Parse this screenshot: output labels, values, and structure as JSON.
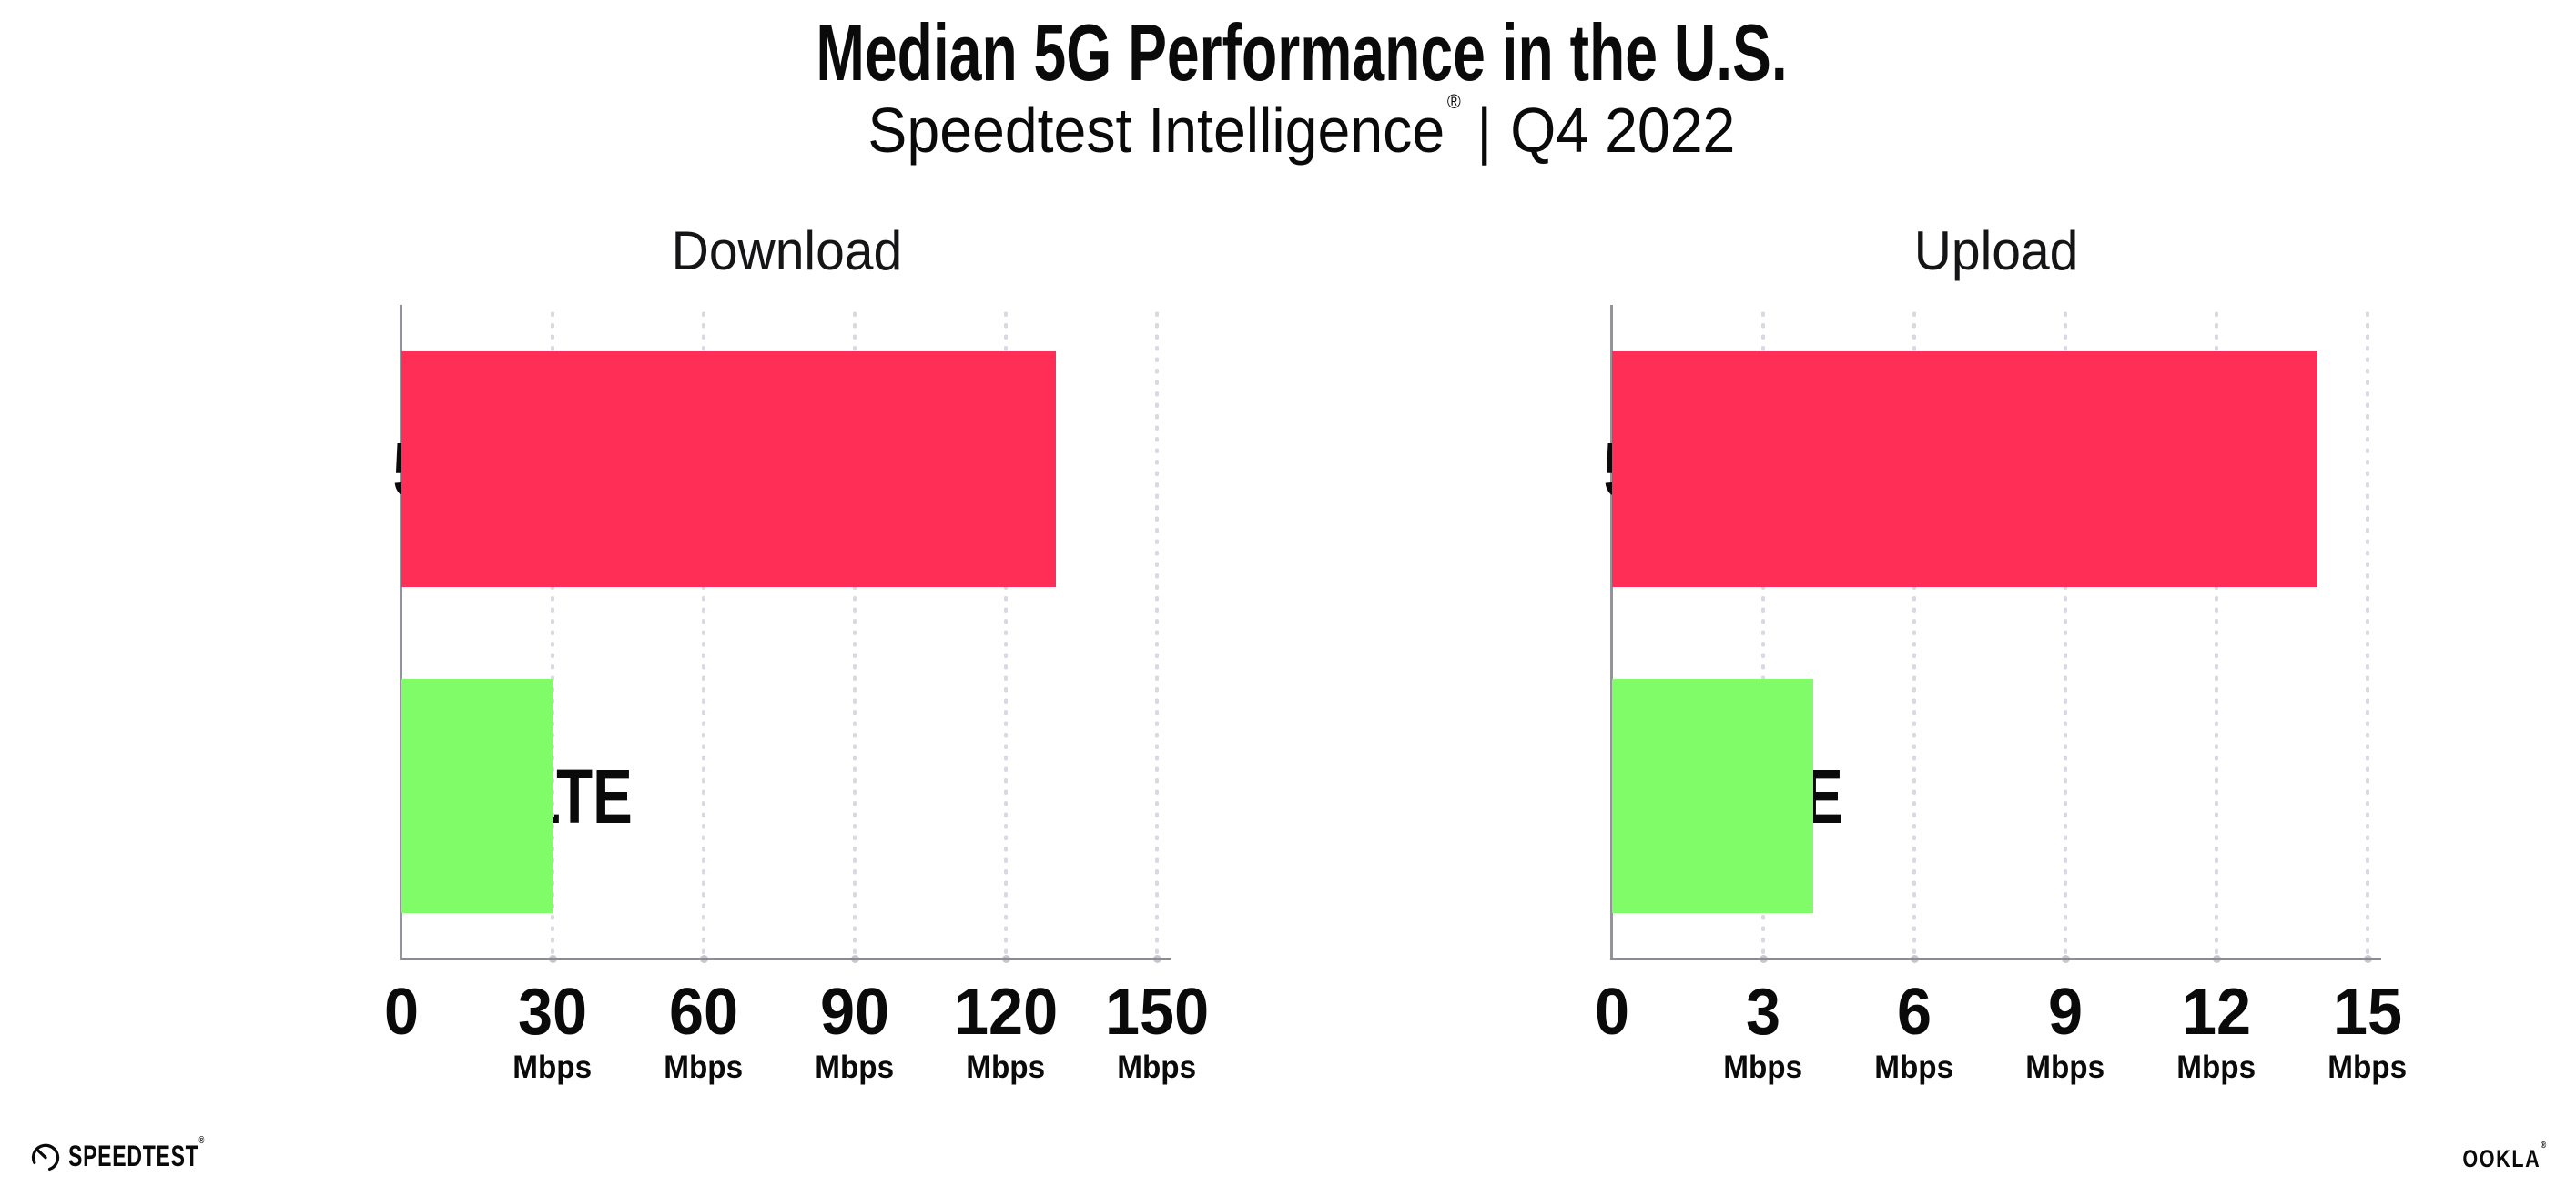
{
  "title": "Median 5G Performance in the U.S.",
  "subtitle": {
    "product": "Speedtest Intelligence",
    "registered": "®",
    "separator": "|",
    "period": "Q4 2022"
  },
  "chart_data": [
    {
      "type": "bar",
      "orientation": "horizontal",
      "title": "Download",
      "categories": [
        "5G",
        "4G LTE"
      ],
      "values": [
        130,
        30
      ],
      "unit": "Mbps",
      "xlim": [
        0,
        150
      ],
      "xticks": [
        0,
        30,
        60,
        90,
        120,
        150
      ],
      "xtick_unit_label": "Mbps",
      "unit_shown_on_zero_tick": false,
      "bar_colors": [
        "#FE2E56",
        "#80FC68"
      ],
      "grid": "dotted-vertical",
      "legend": "none"
    },
    {
      "type": "bar",
      "orientation": "horizontal",
      "title": "Upload",
      "categories": [
        "5G",
        "4G LTE"
      ],
      "values": [
        14,
        4
      ],
      "unit": "Mbps",
      "xlim": [
        0,
        15
      ],
      "xticks": [
        0,
        3,
        6,
        9,
        12,
        15
      ],
      "xtick_unit_label": "Mbps",
      "unit_shown_on_zero_tick": false,
      "bar_colors": [
        "#FE2E56",
        "#80FC68"
      ],
      "grid": "dotted-vertical",
      "legend": "none"
    }
  ],
  "footer": {
    "speedtest": "SPEEDTEST",
    "speedtest_mark": "®",
    "ookla": "OOKLA",
    "ookla_mark": "®"
  },
  "colors": {
    "bar_5g": "#FE2E56",
    "bar_4g_lte": "#80FC68",
    "gridline_dots": "#D9D9E3",
    "y_axis": "#93939B",
    "x_axis": "#8C8C92",
    "text": "#0A0A0B",
    "background": "#FFFFFF"
  }
}
